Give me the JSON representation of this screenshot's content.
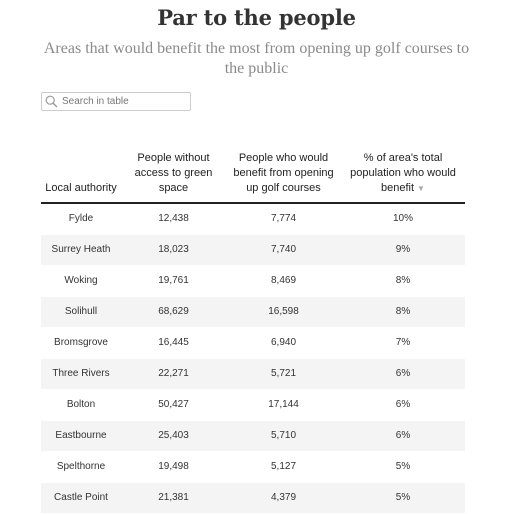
{
  "header": {
    "title": "Par to the people",
    "subtitle": "Areas that would benefit the most from opening up golf courses to the public"
  },
  "search": {
    "placeholder": "Search in table",
    "icon": "search-icon"
  },
  "table": {
    "columns": [
      "Local authority",
      "People without access to green space",
      "People who would benefit from opening up golf courses",
      "% of area's total population who would benefit"
    ],
    "sort_indicator": "▼",
    "rows": [
      {
        "authority": "Fylde",
        "no_green_space": "12,438",
        "would_benefit": "7,774",
        "percent": "10%"
      },
      {
        "authority": "Surrey Heath",
        "no_green_space": "18,023",
        "would_benefit": "7,740",
        "percent": "9%"
      },
      {
        "authority": "Woking",
        "no_green_space": "19,761",
        "would_benefit": "8,469",
        "percent": "8%"
      },
      {
        "authority": "Solihull",
        "no_green_space": "68,629",
        "would_benefit": "16,598",
        "percent": "8%"
      },
      {
        "authority": "Bromsgrove",
        "no_green_space": "16,445",
        "would_benefit": "6,940",
        "percent": "7%"
      },
      {
        "authority": "Three Rivers",
        "no_green_space": "22,271",
        "would_benefit": "5,721",
        "percent": "6%"
      },
      {
        "authority": "Bolton",
        "no_green_space": "50,427",
        "would_benefit": "17,144",
        "percent": "6%"
      },
      {
        "authority": "Eastbourne",
        "no_green_space": "25,403",
        "would_benefit": "5,710",
        "percent": "6%"
      },
      {
        "authority": "Spelthorne",
        "no_green_space": "19,498",
        "would_benefit": "5,127",
        "percent": "5%"
      },
      {
        "authority": "Castle Point",
        "no_green_space": "21,381",
        "would_benefit": "4,379",
        "percent": "5%"
      }
    ]
  }
}
